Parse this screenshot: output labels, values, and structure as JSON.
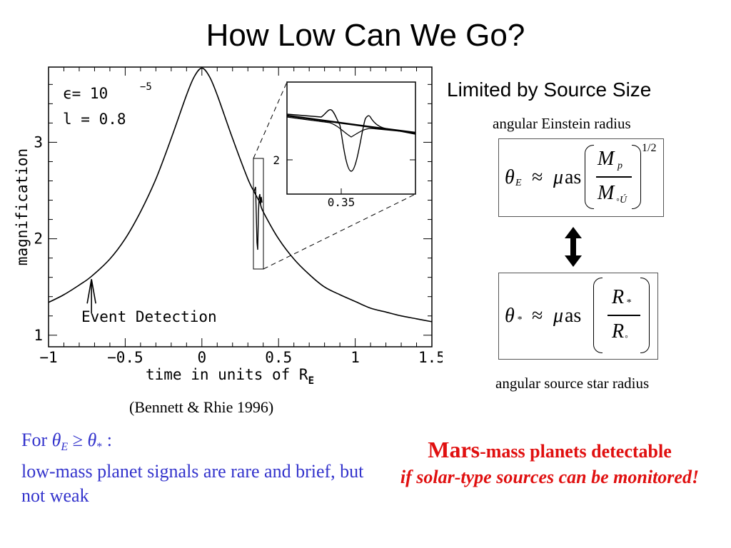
{
  "slide": {
    "title": "How Low Can We Go?",
    "subtitle": "Limited by Source Size",
    "reference": "(Bennett & Rhie 1996)"
  },
  "formulas": {
    "einstein_caption": "angular Einstein radius",
    "einstein": {
      "theta": "θ",
      "theta_sub": "E",
      "approx": "≈",
      "mu": "μ",
      "unit": "as",
      "num": "M",
      "num_sub": "p",
      "den": "M",
      "den_sub": "◦Ú",
      "exponent": "1/2"
    },
    "source_caption": "angular source star radius",
    "source": {
      "theta": "θ",
      "theta_sub": "*",
      "approx": "≈",
      "mu": "μ",
      "unit": "as",
      "num": "R",
      "num_sub": "*",
      "den": "R",
      "den_sub": "◦"
    }
  },
  "notes": {
    "left_prefix": "For ",
    "left_cond_theta_e": "θ",
    "left_cond_sub_e": "E",
    "left_cond_ge": " ≥ ",
    "left_cond_theta_s": "θ",
    "left_cond_sub_s": "*",
    "left_cond_colon": " :",
    "left_body": "low-mass planet signals are rare and brief, but not weak",
    "right_mars": "Mars",
    "right_rest": "-mass planets detectable",
    "right_italic": "if solar-type sources can be monitored!"
  },
  "colors": {
    "note_left": "#3333cc",
    "note_right": "#e01010"
  },
  "chart_data": {
    "type": "line",
    "xlabel": "time in units of R",
    "xlabel_sub": "E",
    "ylabel": "magnification",
    "xlim": [
      -1,
      1.5
    ],
    "ylim": [
      0.88,
      3.78
    ],
    "x_ticks": [
      -1,
      -0.5,
      0,
      0.5,
      1,
      1.5
    ],
    "x_tick_labels": [
      "−1",
      "−0.5",
      "0",
      "0.5",
      "1",
      "1.5"
    ],
    "y_ticks": [
      1,
      2,
      3
    ],
    "y_tick_labels": [
      "1",
      "2",
      "3"
    ],
    "parameters": [
      "ϵ=  10",
      "−5",
      "l =  0.8"
    ],
    "annotation": "Event Detection",
    "annotation_x": -0.72,
    "series": [
      {
        "x": [
          -1.0,
          -0.9,
          -0.8,
          -0.72,
          -0.6,
          -0.5,
          -0.4,
          -0.3,
          -0.2,
          -0.1,
          -0.05,
          0.0,
          0.05,
          0.1,
          0.2,
          0.3,
          0.34,
          0.36,
          0.38,
          0.4,
          0.5,
          0.6,
          0.7,
          0.8,
          0.9,
          1.0,
          1.1,
          1.2,
          1.3,
          1.4,
          1.5
        ],
        "values": [
          1.34,
          1.42,
          1.52,
          1.61,
          1.79,
          2.0,
          2.28,
          2.62,
          3.04,
          3.49,
          3.68,
          3.77,
          3.68,
          3.49,
          3.04,
          2.62,
          2.49,
          2.43,
          2.37,
          2.28,
          2.0,
          1.79,
          1.63,
          1.5,
          1.42,
          1.35,
          1.28,
          1.24,
          1.2,
          1.17,
          1.14
        ]
      }
    ],
    "inset": {
      "x_tick_labels": [
        "0.35"
      ],
      "y_tick_labels": [
        "2"
      ],
      "planet_dip_y": 1.8
    }
  }
}
